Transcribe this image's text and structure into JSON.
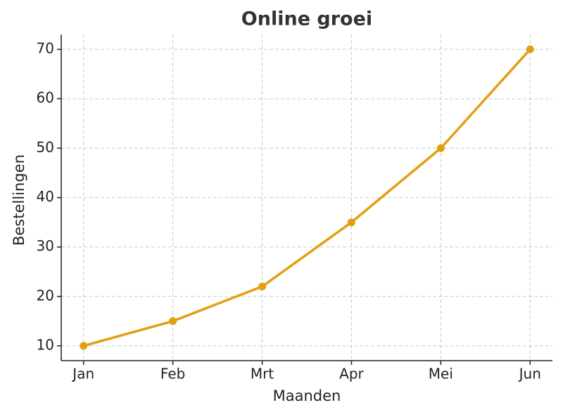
{
  "chart_data": {
    "type": "line",
    "title": "Online groei",
    "x_label": "Maanden",
    "y_label": "Bestellingen",
    "categories": [
      "Jan",
      "Feb",
      "Mrt",
      "Apr",
      "Mei",
      "Jun"
    ],
    "values": [
      10,
      15,
      22,
      35,
      50,
      70
    ],
    "color": "#e39f10",
    "ylim": [
      7,
      73
    ],
    "yticks": [
      10,
      20,
      30,
      40,
      50,
      60,
      70
    ],
    "grid": true
  }
}
